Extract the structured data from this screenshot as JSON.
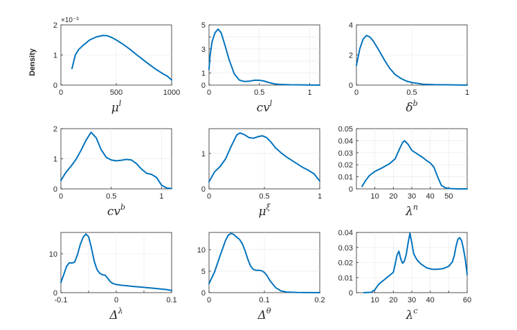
{
  "figure": {
    "ylabel": "Density"
  },
  "chart_data": [
    {
      "type": "line",
      "xlabel_base": "μ",
      "xlabel_sup": "l",
      "xlim": [
        0,
        1000
      ],
      "ylim": [
        0,
        2
      ],
      "xticks": [
        0,
        500,
        1000
      ],
      "xticklabels": [
        "0",
        "500",
        "1000"
      ],
      "yticks": [
        0,
        1,
        2
      ],
      "yticklabels": [
        "0",
        "1",
        "2"
      ],
      "y_multiplier": "×10⁻³",
      "grid": true,
      "x": [
        100,
        130,
        160,
        200,
        260,
        320,
        380,
        420,
        460,
        500,
        560,
        620,
        680,
        740,
        800,
        860,
        920,
        960,
        1000
      ],
      "y": [
        0.55,
        1.0,
        1.18,
        1.32,
        1.5,
        1.6,
        1.65,
        1.64,
        1.58,
        1.5,
        1.36,
        1.2,
        1.02,
        0.85,
        0.68,
        0.52,
        0.38,
        0.3,
        0.17
      ]
    },
    {
      "type": "line",
      "xlabel_base": "cv",
      "xlabel_sup": "l",
      "xlim": [
        0,
        1.1
      ],
      "ylim": [
        0,
        5
      ],
      "xticks": [
        0,
        0.5,
        1
      ],
      "xticklabels": [
        "0",
        "0.5",
        "1"
      ],
      "yticks": [
        0,
        1,
        2,
        3,
        4,
        5
      ],
      "yticklabels": [
        "0",
        "1",
        "",
        "3",
        "",
        "5"
      ],
      "grid": true,
      "x": [
        0.0,
        0.01,
        0.03,
        0.06,
        0.09,
        0.12,
        0.15,
        0.2,
        0.25,
        0.3,
        0.35,
        0.4,
        0.45,
        0.5,
        0.55,
        0.6,
        0.65,
        0.7,
        0.8,
        0.9,
        1.0,
        1.1
      ],
      "y": [
        1.3,
        2.4,
        3.6,
        4.35,
        4.65,
        4.35,
        3.55,
        2.1,
        0.95,
        0.42,
        0.3,
        0.32,
        0.4,
        0.4,
        0.33,
        0.2,
        0.1,
        0.06,
        0.03,
        0.02,
        0.01,
        0.0
      ]
    },
    {
      "type": "line",
      "xlabel_base": "δ",
      "xlabel_sup": "b",
      "xlim": [
        0,
        1
      ],
      "ylim": [
        0,
        4
      ],
      "xticks": [
        0,
        0.5,
        1
      ],
      "xticklabels": [
        "0",
        "0.5",
        "1"
      ],
      "yticks": [
        0,
        2,
        4
      ],
      "yticklabels": [
        "0",
        "2",
        "4"
      ],
      "grid": true,
      "x": [
        0.0,
        0.03,
        0.06,
        0.09,
        0.12,
        0.15,
        0.2,
        0.25,
        0.3,
        0.35,
        0.4,
        0.45,
        0.5,
        0.6,
        0.7,
        0.8,
        0.9,
        1.0
      ],
      "y": [
        1.3,
        2.4,
        3.05,
        3.3,
        3.2,
        2.95,
        2.35,
        1.7,
        1.12,
        0.7,
        0.45,
        0.27,
        0.17,
        0.06,
        0.03,
        0.02,
        0.01,
        0.0
      ]
    },
    {
      "type": "line",
      "xlabel_base": "cv",
      "xlabel_sup": "b",
      "xlim": [
        0,
        1.1
      ],
      "ylim": [
        0,
        2
      ],
      "xticks": [
        0,
        0.5,
        1
      ],
      "xticklabels": [
        "0",
        "0.5",
        "1"
      ],
      "yticks": [
        0,
        1,
        2
      ],
      "yticklabels": [
        "0",
        "1",
        "2"
      ],
      "grid": true,
      "x": [
        0.0,
        0.05,
        0.1,
        0.15,
        0.2,
        0.25,
        0.3,
        0.35,
        0.4,
        0.45,
        0.5,
        0.55,
        0.6,
        0.65,
        0.7,
        0.75,
        0.8,
        0.85,
        0.9,
        0.95,
        1.0,
        1.05,
        1.1
      ],
      "y": [
        0.28,
        0.55,
        0.75,
        0.98,
        1.28,
        1.62,
        1.88,
        1.7,
        1.3,
        1.05,
        0.96,
        0.93,
        0.95,
        0.98,
        0.96,
        0.84,
        0.66,
        0.52,
        0.48,
        0.38,
        0.12,
        0.03,
        0.01
      ]
    },
    {
      "type": "line",
      "xlabel_base": "μ",
      "xlabel_sup": "ξ",
      "xlim": [
        0,
        1
      ],
      "ylim": [
        0,
        1.7
      ],
      "xticks": [
        0,
        0.5,
        1
      ],
      "xticklabels": [
        "0",
        "0.5",
        "1"
      ],
      "yticks": [
        0,
        1
      ],
      "yticklabels": [
        "0",
        "1"
      ],
      "grid": true,
      "x": [
        0.0,
        0.05,
        0.1,
        0.15,
        0.2,
        0.25,
        0.28,
        0.32,
        0.36,
        0.4,
        0.45,
        0.48,
        0.52,
        0.56,
        0.6,
        0.65,
        0.7,
        0.75,
        0.8,
        0.85,
        0.9,
        0.95,
        1.0
      ],
      "y": [
        0.2,
        0.48,
        0.63,
        0.85,
        1.2,
        1.52,
        1.58,
        1.53,
        1.45,
        1.43,
        1.48,
        1.5,
        1.45,
        1.32,
        1.16,
        1.02,
        0.9,
        0.8,
        0.7,
        0.6,
        0.52,
        0.42,
        0.22
      ]
    },
    {
      "type": "line",
      "xlabel_base": "λ",
      "xlabel_sup": "n",
      "xlim": [
        0,
        60
      ],
      "ylim": [
        0,
        0.05
      ],
      "xticks": [
        10,
        20,
        30,
        40,
        50
      ],
      "xticklabels": [
        "10",
        "20",
        "30",
        "40",
        "50"
      ],
      "yticks": [
        0,
        0.01,
        0.02,
        0.03,
        0.04,
        0.05
      ],
      "yticklabels": [
        "0",
        "0.01",
        "0.02",
        "0.03",
        "0.04",
        "0.05"
      ],
      "grid": true,
      "x": [
        3,
        5,
        7,
        10,
        14,
        18,
        21,
        23,
        25,
        26,
        28,
        30,
        33,
        36,
        38,
        40,
        42,
        44,
        46,
        48,
        50,
        55,
        60
      ],
      "y": [
        0.002,
        0.007,
        0.011,
        0.0145,
        0.0175,
        0.021,
        0.025,
        0.032,
        0.0385,
        0.04,
        0.037,
        0.032,
        0.029,
        0.026,
        0.0235,
        0.0215,
        0.018,
        0.01,
        0.003,
        0.001,
        0.0003,
        0.0,
        0.0
      ]
    },
    {
      "type": "line",
      "xlabel_base": "Δ",
      "xlabel_sup": "λ",
      "xlim": [
        -0.1,
        0.1
      ],
      "ylim": [
        0,
        15.5
      ],
      "xticks": [
        -0.1,
        -0.05,
        0,
        0.05,
        0.1
      ],
      "xticklabels": [
        "-0.1",
        "",
        "0",
        "",
        "0.1"
      ],
      "yticks": [
        0,
        10
      ],
      "yticklabels": [
        "0",
        "10"
      ],
      "grid": true,
      "x": [
        -0.1,
        -0.095,
        -0.09,
        -0.085,
        -0.08,
        -0.075,
        -0.07,
        -0.065,
        -0.06,
        -0.055,
        -0.05,
        -0.045,
        -0.04,
        -0.035,
        -0.03,
        -0.025,
        -0.02,
        -0.015,
        -0.01,
        -0.005,
        0.0,
        0.01,
        0.02,
        0.03,
        0.05,
        0.07,
        0.09,
        0.1
      ],
      "y": [
        2.6,
        4.6,
        6.7,
        7.7,
        7.6,
        7.9,
        9.8,
        12.4,
        14.2,
        15.1,
        14.4,
        11.6,
        8.2,
        6.0,
        5.0,
        4.6,
        4.5,
        3.6,
        2.7,
        2.3,
        2.1,
        1.9,
        1.75,
        1.6,
        1.35,
        1.1,
        0.8,
        0.55
      ]
    },
    {
      "type": "line",
      "xlabel_base": "Δ",
      "xlabel_sup": "θ",
      "xlim": [
        0,
        0.2
      ],
      "ylim": [
        0,
        14
      ],
      "xticks": [
        0,
        0.1,
        0.2
      ],
      "xticklabels": [
        "0",
        "0.1",
        "0.2"
      ],
      "yticks": [
        0,
        5,
        10
      ],
      "yticklabels": [
        "0",
        "5",
        "10"
      ],
      "grid": true,
      "x": [
        0.0,
        0.01,
        0.02,
        0.03,
        0.035,
        0.04,
        0.045,
        0.05,
        0.055,
        0.06,
        0.065,
        0.07,
        0.075,
        0.08,
        0.085,
        0.09,
        0.095,
        0.1,
        0.105,
        0.11,
        0.12,
        0.13,
        0.14,
        0.16,
        0.2
      ],
      "y": [
        2.1,
        4.8,
        8.6,
        12.2,
        13.4,
        13.8,
        13.5,
        12.9,
        12.4,
        11.4,
        9.8,
        7.8,
        6.2,
        5.4,
        5.2,
        5.2,
        5.1,
        4.7,
        3.9,
        2.8,
        1.2,
        0.4,
        0.15,
        0.03,
        0.0
      ]
    },
    {
      "type": "line",
      "xlabel_base": "λ",
      "xlabel_sup": "c",
      "xlim": [
        0,
        60
      ],
      "ylim": [
        0,
        0.04
      ],
      "xticks": [
        10,
        20,
        30,
        40,
        50,
        60
      ],
      "xticklabels": [
        "10",
        "20",
        "30",
        "40",
        "",
        "60"
      ],
      "yticks": [
        0,
        0.01,
        0.02,
        0.03,
        0.04
      ],
      "yticklabels": [
        "0",
        "0.01",
        "0.02",
        "0.03",
        "0.04"
      ],
      "grid": true,
      "x": [
        4,
        8,
        10,
        12,
        14,
        16,
        18,
        20,
        21,
        22,
        23,
        24,
        25,
        26,
        27,
        28,
        29,
        30,
        31,
        32,
        33,
        35,
        38,
        41,
        44,
        47,
        50,
        52,
        53,
        54,
        55,
        56,
        57,
        58,
        59,
        60
      ],
      "y": [
        0.0,
        0.0002,
        0.002,
        0.0055,
        0.0075,
        0.0095,
        0.0115,
        0.0135,
        0.019,
        0.025,
        0.0275,
        0.0225,
        0.0195,
        0.021,
        0.0255,
        0.033,
        0.0395,
        0.033,
        0.026,
        0.0235,
        0.0215,
        0.019,
        0.0165,
        0.0155,
        0.0155,
        0.016,
        0.0175,
        0.0205,
        0.0245,
        0.031,
        0.0355,
        0.0365,
        0.0345,
        0.029,
        0.022,
        0.012
      ]
    }
  ]
}
